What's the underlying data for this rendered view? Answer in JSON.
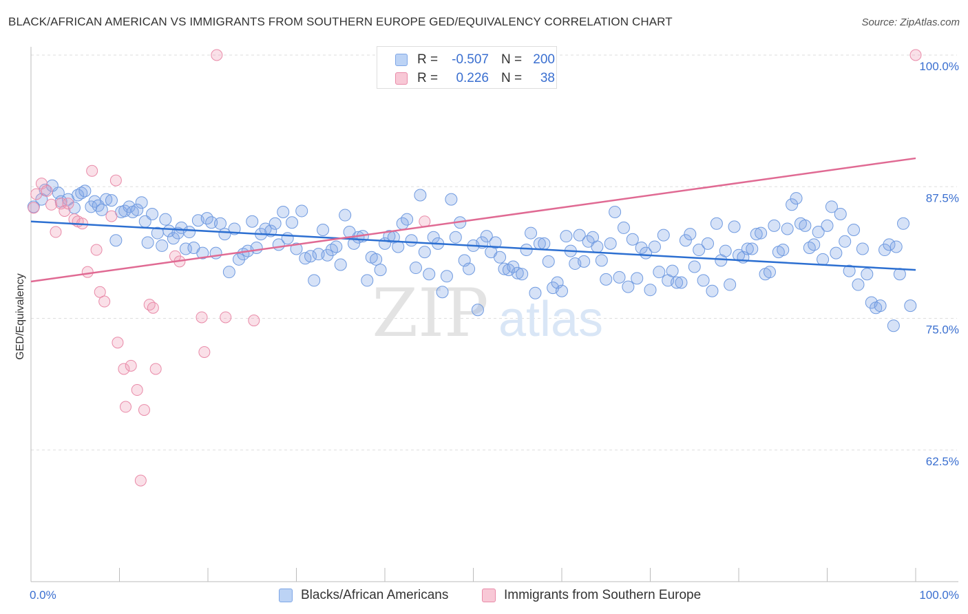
{
  "title": "BLACK/AFRICAN AMERICAN VS IMMIGRANTS FROM SOUTHERN EUROPE GED/EQUIVALENCY CORRELATION CHART",
  "source": "Source: ZipAtlas.com",
  "watermark": {
    "zip": "ZIP",
    "atlas": "atlas"
  },
  "legend_top": [
    {
      "r_label": "R =",
      "r_value": "-0.507",
      "n_label": "N =",
      "n_value": "200"
    },
    {
      "r_label": "R =",
      "r_value": "0.226",
      "n_label": "N =",
      "n_value": "38"
    }
  ],
  "chart_data": {
    "type": "scatter",
    "title": "BLACK/AFRICAN AMERICAN VS IMMIGRANTS FROM SOUTHERN EUROPE GED/EQUIVALENCY CORRELATION CHART",
    "xlabel": "",
    "ylabel": "GED/Equivalency",
    "xlim": [
      0,
      100
    ],
    "ylim": [
      50,
      100
    ],
    "x_tick_labels": [
      "0.0%",
      "100.0%"
    ],
    "y_ticks": [
      62.5,
      75.0,
      87.5,
      100.0
    ],
    "y_tick_labels": [
      "62.5%",
      "75.0%",
      "87.5%",
      "100.0%"
    ],
    "grid": "horizontal dashed",
    "legend_placement": "bottom",
    "colors": {
      "blue": "#5b8fe0",
      "pink": "#e98aa8",
      "blue_line": "#2c6fd1",
      "pink_line": "#e06a93",
      "tick_label": "#3a6fd0"
    },
    "series": [
      {
        "name": "Blacks/African Americans",
        "trend": {
          "x": [
            0,
            100
          ],
          "y": [
            84.2,
            79.6
          ]
        },
        "points": [
          [
            0.3,
            85.6
          ],
          [
            1.2,
            86.3
          ],
          [
            1.6,
            87.2
          ],
          [
            2.4,
            87.6
          ],
          [
            3.1,
            86.9
          ],
          [
            3.4,
            86.1
          ],
          [
            4.2,
            86.3
          ],
          [
            4.9,
            85.5
          ],
          [
            5.3,
            86.7
          ],
          [
            5.7,
            86.9
          ],
          [
            6.1,
            87.1
          ],
          [
            6.8,
            85.6
          ],
          [
            7.2,
            86.1
          ],
          [
            7.6,
            85.7
          ],
          [
            8.0,
            85.3
          ],
          [
            8.5,
            86.3
          ],
          [
            9.1,
            86.2
          ],
          [
            9.6,
            82.4
          ],
          [
            10.2,
            85.1
          ],
          [
            10.6,
            85.2
          ],
          [
            11.1,
            85.6
          ],
          [
            11.5,
            85.1
          ],
          [
            12.0,
            85.3
          ],
          [
            12.5,
            86.0
          ],
          [
            12.9,
            84.2
          ],
          [
            13.2,
            82.2
          ],
          [
            13.7,
            84.9
          ],
          [
            14.3,
            83.1
          ],
          [
            14.8,
            81.9
          ],
          [
            15.2,
            84.4
          ],
          [
            15.6,
            83.3
          ],
          [
            16.1,
            82.6
          ],
          [
            16.6,
            83.1
          ],
          [
            17.0,
            83.6
          ],
          [
            17.5,
            81.6
          ],
          [
            17.9,
            83.2
          ],
          [
            18.4,
            81.7
          ],
          [
            18.9,
            84.3
          ],
          [
            19.4,
            81.2
          ],
          [
            19.9,
            84.5
          ],
          [
            20.4,
            84.1
          ],
          [
            20.9,
            81.2
          ],
          [
            21.4,
            84.0
          ],
          [
            21.9,
            83.0
          ],
          [
            22.4,
            79.4
          ],
          [
            23.0,
            83.5
          ],
          [
            23.5,
            80.6
          ],
          [
            24.0,
            81.1
          ],
          [
            24.5,
            81.4
          ],
          [
            25.0,
            84.2
          ],
          [
            25.5,
            81.7
          ],
          [
            26.0,
            83.0
          ],
          [
            26.5,
            83.5
          ],
          [
            27.1,
            83.3
          ],
          [
            27.6,
            84.0
          ],
          [
            28.0,
            82.0
          ],
          [
            28.5,
            85.1
          ],
          [
            29.0,
            82.6
          ],
          [
            29.5,
            84.1
          ],
          [
            30.0,
            81.6
          ],
          [
            30.6,
            85.2
          ],
          [
            31.0,
            80.7
          ],
          [
            31.6,
            80.9
          ],
          [
            32.0,
            78.6
          ],
          [
            32.5,
            81.1
          ],
          [
            33.0,
            83.4
          ],
          [
            33.5,
            81.0
          ],
          [
            34.0,
            81.5
          ],
          [
            34.5,
            81.8
          ],
          [
            35.0,
            80.1
          ],
          [
            35.5,
            84.8
          ],
          [
            36.0,
            83.2
          ],
          [
            36.5,
            82.1
          ],
          [
            37.0,
            82.7
          ],
          [
            37.5,
            82.8
          ],
          [
            38.0,
            78.6
          ],
          [
            38.5,
            80.8
          ],
          [
            39.0,
            80.6
          ],
          [
            39.5,
            79.6
          ],
          [
            40.0,
            82.1
          ],
          [
            40.5,
            82.8
          ],
          [
            41.0,
            82.7
          ],
          [
            41.5,
            81.8
          ],
          [
            42.0,
            84.0
          ],
          [
            42.5,
            84.4
          ],
          [
            43.0,
            82.4
          ],
          [
            43.5,
            79.8
          ],
          [
            44.0,
            86.7
          ],
          [
            44.5,
            81.3
          ],
          [
            45.0,
            79.2
          ],
          [
            45.5,
            82.7
          ],
          [
            46.0,
            82.1
          ],
          [
            46.5,
            77.5
          ],
          [
            47.0,
            79.0
          ],
          [
            47.5,
            86.3
          ],
          [
            48.0,
            82.7
          ],
          [
            48.5,
            84.1
          ],
          [
            49.0,
            80.5
          ],
          [
            49.5,
            79.7
          ],
          [
            50.0,
            81.9
          ],
          [
            50.5,
            75.8
          ],
          [
            51.0,
            82.2
          ],
          [
            51.5,
            82.8
          ],
          [
            52.0,
            81.3
          ],
          [
            52.5,
            82.2
          ],
          [
            53.0,
            80.8
          ],
          [
            53.5,
            79.7
          ],
          [
            54.0,
            79.6
          ],
          [
            54.5,
            79.9
          ],
          [
            55.0,
            79.3
          ],
          [
            55.5,
            79.2
          ],
          [
            56.0,
            81.5
          ],
          [
            56.5,
            83.1
          ],
          [
            57.0,
            77.4
          ],
          [
            57.5,
            82.1
          ],
          [
            58.0,
            82.1
          ],
          [
            58.5,
            80.4
          ],
          [
            59.0,
            77.9
          ],
          [
            59.5,
            78.4
          ],
          [
            60.0,
            77.6
          ],
          [
            60.5,
            82.8
          ],
          [
            61.0,
            81.4
          ],
          [
            61.5,
            80.2
          ],
          [
            62.0,
            82.9
          ],
          [
            62.5,
            80.4
          ],
          [
            63.0,
            82.3
          ],
          [
            63.5,
            82.7
          ],
          [
            64.0,
            81.8
          ],
          [
            64.5,
            80.5
          ],
          [
            65.0,
            78.7
          ],
          [
            65.5,
            82.1
          ],
          [
            66.0,
            85.1
          ],
          [
            66.5,
            78.9
          ],
          [
            67.0,
            83.6
          ],
          [
            67.5,
            78.0
          ],
          [
            68.0,
            82.5
          ],
          [
            68.5,
            78.8
          ],
          [
            69.0,
            81.7
          ],
          [
            69.5,
            81.2
          ],
          [
            70.0,
            77.7
          ],
          [
            70.5,
            81.8
          ],
          [
            71.0,
            79.4
          ],
          [
            71.5,
            82.9
          ],
          [
            72.0,
            78.6
          ],
          [
            72.5,
            79.5
          ],
          [
            73.0,
            78.4
          ],
          [
            73.5,
            78.4
          ],
          [
            74.0,
            82.4
          ],
          [
            74.5,
            83.0
          ],
          [
            75.0,
            79.9
          ],
          [
            75.5,
            81.5
          ],
          [
            76.0,
            78.6
          ],
          [
            76.5,
            82.1
          ],
          [
            77.0,
            77.6
          ],
          [
            77.5,
            84.0
          ],
          [
            78.0,
            80.5
          ],
          [
            78.5,
            81.4
          ],
          [
            79.0,
            78.2
          ],
          [
            79.5,
            83.7
          ],
          [
            80.0,
            81.0
          ],
          [
            80.5,
            80.8
          ],
          [
            81.0,
            81.6
          ],
          [
            81.5,
            81.6
          ],
          [
            82.0,
            83.0
          ],
          [
            82.5,
            83.1
          ],
          [
            83.0,
            79.2
          ],
          [
            83.5,
            79.4
          ],
          [
            84.0,
            83.8
          ],
          [
            84.5,
            81.3
          ],
          [
            85.0,
            81.5
          ],
          [
            85.5,
            83.5
          ],
          [
            86.0,
            85.8
          ],
          [
            86.5,
            86.4
          ],
          [
            87.0,
            84.0
          ],
          [
            87.5,
            83.8
          ],
          [
            88.0,
            81.7
          ],
          [
            88.5,
            82.0
          ],
          [
            89.0,
            83.2
          ],
          [
            89.5,
            80.6
          ],
          [
            90.0,
            83.8
          ],
          [
            90.5,
            85.6
          ],
          [
            91.0,
            81.2
          ],
          [
            91.5,
            84.9
          ],
          [
            92.0,
            82.3
          ],
          [
            92.5,
            79.5
          ],
          [
            93.0,
            83.4
          ],
          [
            93.5,
            78.2
          ],
          [
            94.0,
            81.6
          ],
          [
            94.5,
            79.2
          ],
          [
            95.0,
            76.5
          ],
          [
            95.5,
            76.0
          ],
          [
            96.0,
            76.2
          ],
          [
            96.5,
            81.5
          ],
          [
            97.0,
            82.0
          ],
          [
            97.5,
            74.3
          ],
          [
            97.8,
            81.8
          ],
          [
            98.2,
            79.2
          ],
          [
            98.6,
            84.0
          ],
          [
            99.4,
            76.2
          ]
        ]
      },
      {
        "name": "Immigrants from Southern Europe",
        "trend": {
          "x": [
            0,
            100
          ],
          "y": [
            78.5,
            90.2
          ]
        },
        "points": [
          [
            0.3,
            85.5
          ],
          [
            0.6,
            86.8
          ],
          [
            1.2,
            87.8
          ],
          [
            1.8,
            87.1
          ],
          [
            2.3,
            85.8
          ],
          [
            2.8,
            83.2
          ],
          [
            3.4,
            85.9
          ],
          [
            3.8,
            85.2
          ],
          [
            4.2,
            85.9
          ],
          [
            4.9,
            84.4
          ],
          [
            5.3,
            84.2
          ],
          [
            5.8,
            84.0
          ],
          [
            6.4,
            79.4
          ],
          [
            6.9,
            89.0
          ],
          [
            7.4,
            81.5
          ],
          [
            7.8,
            77.5
          ],
          [
            8.3,
            76.6
          ],
          [
            9.1,
            84.7
          ],
          [
            9.6,
            88.1
          ],
          [
            9.8,
            72.7
          ],
          [
            10.5,
            70.2
          ],
          [
            10.7,
            66.6
          ],
          [
            11.3,
            70.5
          ],
          [
            12.0,
            68.2
          ],
          [
            12.4,
            59.6
          ],
          [
            12.8,
            66.3
          ],
          [
            13.4,
            76.3
          ],
          [
            13.8,
            76.0
          ],
          [
            14.1,
            70.2
          ],
          [
            16.3,
            80.9
          ],
          [
            16.8,
            80.4
          ],
          [
            19.3,
            75.1
          ],
          [
            19.6,
            71.8
          ],
          [
            21.0,
            100.0
          ],
          [
            22.0,
            75.1
          ],
          [
            25.2,
            74.8
          ],
          [
            44.5,
            84.2
          ],
          [
            100.0,
            100.0
          ]
        ]
      }
    ]
  }
}
